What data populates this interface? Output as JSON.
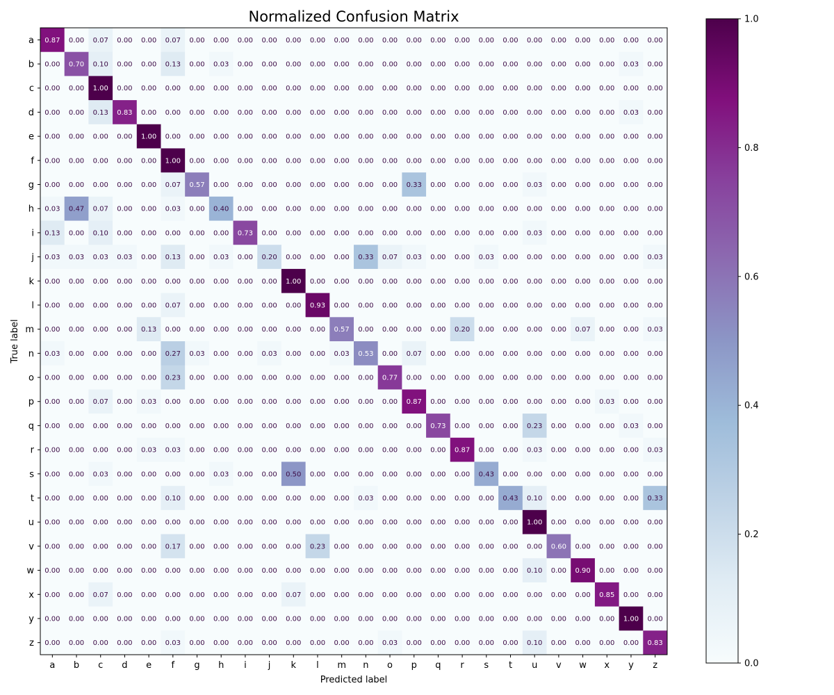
{
  "chart_data": {
    "type": "heatmap",
    "title": "Normalized Confusion Matrix",
    "xlabel": "Predicted label",
    "ylabel": "True label",
    "x_categories": [
      "a",
      "b",
      "c",
      "d",
      "e",
      "f",
      "g",
      "h",
      "i",
      "j",
      "k",
      "l",
      "m",
      "n",
      "o",
      "p",
      "q",
      "r",
      "s",
      "t",
      "u",
      "v",
      "w",
      "x",
      "y",
      "z"
    ],
    "y_categories": [
      "a",
      "b",
      "c",
      "d",
      "e",
      "f",
      "g",
      "h",
      "i",
      "j",
      "k",
      "l",
      "m",
      "n",
      "o",
      "p",
      "q",
      "r",
      "s",
      "t",
      "u",
      "v",
      "w",
      "x",
      "y",
      "z"
    ],
    "value_range": [
      0,
      1
    ],
    "colormap": "BuPu",
    "colorbar_ticks": [
      "0.0",
      "0.2",
      "0.4",
      "0.6",
      "0.8",
      "1.0"
    ],
    "colorbar_tick_values": [
      0,
      0.2,
      0.4,
      0.6,
      0.8,
      1.0
    ],
    "values": [
      [
        0.87,
        0.0,
        0.07,
        0.0,
        0.0,
        0.07,
        0.0,
        0.0,
        0.0,
        0.0,
        0.0,
        0.0,
        0.0,
        0.0,
        0.0,
        0.0,
        0.0,
        0.0,
        0.0,
        0.0,
        0.0,
        0.0,
        0.0,
        0.0,
        0.0,
        0.0
      ],
      [
        0.0,
        0.7,
        0.1,
        0.0,
        0.0,
        0.13,
        0.0,
        0.03,
        0.0,
        0.0,
        0.0,
        0.0,
        0.0,
        0.0,
        0.0,
        0.0,
        0.0,
        0.0,
        0.0,
        0.0,
        0.0,
        0.0,
        0.0,
        0.0,
        0.03,
        0.0
      ],
      [
        0.0,
        0.0,
        1.0,
        0.0,
        0.0,
        0.0,
        0.0,
        0.0,
        0.0,
        0.0,
        0.0,
        0.0,
        0.0,
        0.0,
        0.0,
        0.0,
        0.0,
        0.0,
        0.0,
        0.0,
        0.0,
        0.0,
        0.0,
        0.0,
        0.0,
        0.0
      ],
      [
        0.0,
        0.0,
        0.13,
        0.83,
        0.0,
        0.0,
        0.0,
        0.0,
        0.0,
        0.0,
        0.0,
        0.0,
        0.0,
        0.0,
        0.0,
        0.0,
        0.0,
        0.0,
        0.0,
        0.0,
        0.0,
        0.0,
        0.0,
        0.0,
        0.03,
        0.0
      ],
      [
        0.0,
        0.0,
        0.0,
        0.0,
        1.0,
        0.0,
        0.0,
        0.0,
        0.0,
        0.0,
        0.0,
        0.0,
        0.0,
        0.0,
        0.0,
        0.0,
        0.0,
        0.0,
        0.0,
        0.0,
        0.0,
        0.0,
        0.0,
        0.0,
        0.0,
        0.0
      ],
      [
        0.0,
        0.0,
        0.0,
        0.0,
        0.0,
        1.0,
        0.0,
        0.0,
        0.0,
        0.0,
        0.0,
        0.0,
        0.0,
        0.0,
        0.0,
        0.0,
        0.0,
        0.0,
        0.0,
        0.0,
        0.0,
        0.0,
        0.0,
        0.0,
        0.0,
        0.0
      ],
      [
        0.0,
        0.0,
        0.0,
        0.0,
        0.0,
        0.07,
        0.57,
        0.0,
        0.0,
        0.0,
        0.0,
        0.0,
        0.0,
        0.0,
        0.0,
        0.33,
        0.0,
        0.0,
        0.0,
        0.0,
        0.03,
        0.0,
        0.0,
        0.0,
        0.0,
        0.0
      ],
      [
        0.03,
        0.47,
        0.07,
        0.0,
        0.0,
        0.03,
        0.0,
        0.4,
        0.0,
        0.0,
        0.0,
        0.0,
        0.0,
        0.0,
        0.0,
        0.0,
        0.0,
        0.0,
        0.0,
        0.0,
        0.0,
        0.0,
        0.0,
        0.0,
        0.0,
        0.0
      ],
      [
        0.13,
        0.0,
        0.1,
        0.0,
        0.0,
        0.0,
        0.0,
        0.0,
        0.73,
        0.0,
        0.0,
        0.0,
        0.0,
        0.0,
        0.0,
        0.0,
        0.0,
        0.0,
        0.0,
        0.0,
        0.03,
        0.0,
        0.0,
        0.0,
        0.0,
        0.0
      ],
      [
        0.03,
        0.03,
        0.03,
        0.03,
        0.0,
        0.13,
        0.0,
        0.03,
        0.0,
        0.2,
        0.0,
        0.0,
        0.0,
        0.33,
        0.07,
        0.03,
        0.0,
        0.0,
        0.03,
        0.0,
        0.0,
        0.0,
        0.0,
        0.0,
        0.0,
        0.03
      ],
      [
        0.0,
        0.0,
        0.0,
        0.0,
        0.0,
        0.0,
        0.0,
        0.0,
        0.0,
        0.0,
        1.0,
        0.0,
        0.0,
        0.0,
        0.0,
        0.0,
        0.0,
        0.0,
        0.0,
        0.0,
        0.0,
        0.0,
        0.0,
        0.0,
        0.0,
        0.0
      ],
      [
        0.0,
        0.0,
        0.0,
        0.0,
        0.0,
        0.07,
        0.0,
        0.0,
        0.0,
        0.0,
        0.0,
        0.93,
        0.0,
        0.0,
        0.0,
        0.0,
        0.0,
        0.0,
        0.0,
        0.0,
        0.0,
        0.0,
        0.0,
        0.0,
        0.0,
        0.0
      ],
      [
        0.0,
        0.0,
        0.0,
        0.0,
        0.13,
        0.0,
        0.0,
        0.0,
        0.0,
        0.0,
        0.0,
        0.0,
        0.57,
        0.0,
        0.0,
        0.0,
        0.0,
        0.2,
        0.0,
        0.0,
        0.0,
        0.0,
        0.07,
        0.0,
        0.0,
        0.03
      ],
      [
        0.03,
        0.0,
        0.0,
        0.0,
        0.0,
        0.27,
        0.03,
        0.0,
        0.0,
        0.03,
        0.0,
        0.0,
        0.03,
        0.53,
        0.0,
        0.07,
        0.0,
        0.0,
        0.0,
        0.0,
        0.0,
        0.0,
        0.0,
        0.0,
        0.0,
        0.0
      ],
      [
        0.0,
        0.0,
        0.0,
        0.0,
        0.0,
        0.23,
        0.0,
        0.0,
        0.0,
        0.0,
        0.0,
        0.0,
        0.0,
        0.0,
        0.77,
        0.0,
        0.0,
        0.0,
        0.0,
        0.0,
        0.0,
        0.0,
        0.0,
        0.0,
        0.0,
        0.0
      ],
      [
        0.0,
        0.0,
        0.07,
        0.0,
        0.03,
        0.0,
        0.0,
        0.0,
        0.0,
        0.0,
        0.0,
        0.0,
        0.0,
        0.0,
        0.0,
        0.87,
        0.0,
        0.0,
        0.0,
        0.0,
        0.0,
        0.0,
        0.0,
        0.03,
        0.0,
        0.0
      ],
      [
        0.0,
        0.0,
        0.0,
        0.0,
        0.0,
        0.0,
        0.0,
        0.0,
        0.0,
        0.0,
        0.0,
        0.0,
        0.0,
        0.0,
        0.0,
        0.0,
        0.73,
        0.0,
        0.0,
        0.0,
        0.23,
        0.0,
        0.0,
        0.0,
        0.03,
        0.0
      ],
      [
        0.0,
        0.0,
        0.0,
        0.0,
        0.03,
        0.03,
        0.0,
        0.0,
        0.0,
        0.0,
        0.0,
        0.0,
        0.0,
        0.0,
        0.0,
        0.0,
        0.0,
        0.87,
        0.0,
        0.0,
        0.03,
        0.0,
        0.0,
        0.0,
        0.0,
        0.03
      ],
      [
        0.0,
        0.0,
        0.03,
        0.0,
        0.0,
        0.0,
        0.0,
        0.03,
        0.0,
        0.0,
        0.5,
        0.0,
        0.0,
        0.0,
        0.0,
        0.0,
        0.0,
        0.0,
        0.43,
        0.0,
        0.0,
        0.0,
        0.0,
        0.0,
        0.0,
        0.0
      ],
      [
        0.0,
        0.0,
        0.0,
        0.0,
        0.0,
        0.1,
        0.0,
        0.0,
        0.0,
        0.0,
        0.0,
        0.0,
        0.0,
        0.03,
        0.0,
        0.0,
        0.0,
        0.0,
        0.0,
        0.43,
        0.1,
        0.0,
        0.0,
        0.0,
        0.0,
        0.33
      ],
      [
        0.0,
        0.0,
        0.0,
        0.0,
        0.0,
        0.0,
        0.0,
        0.0,
        0.0,
        0.0,
        0.0,
        0.0,
        0.0,
        0.0,
        0.0,
        0.0,
        0.0,
        0.0,
        0.0,
        0.0,
        1.0,
        0.0,
        0.0,
        0.0,
        0.0,
        0.0
      ],
      [
        0.0,
        0.0,
        0.0,
        0.0,
        0.0,
        0.17,
        0.0,
        0.0,
        0.0,
        0.0,
        0.0,
        0.23,
        0.0,
        0.0,
        0.0,
        0.0,
        0.0,
        0.0,
        0.0,
        0.0,
        0.0,
        0.6,
        0.0,
        0.0,
        0.0,
        0.0
      ],
      [
        0.0,
        0.0,
        0.0,
        0.0,
        0.0,
        0.0,
        0.0,
        0.0,
        0.0,
        0.0,
        0.0,
        0.0,
        0.0,
        0.0,
        0.0,
        0.0,
        0.0,
        0.0,
        0.0,
        0.0,
        0.1,
        0.0,
        0.9,
        0.0,
        0.0,
        0.0
      ],
      [
        0.0,
        0.0,
        0.07,
        0.0,
        0.0,
        0.0,
        0.0,
        0.0,
        0.0,
        0.0,
        0.07,
        0.0,
        0.0,
        0.0,
        0.0,
        0.0,
        0.0,
        0.0,
        0.0,
        0.0,
        0.0,
        0.0,
        0.0,
        0.85,
        0.0,
        0.0
      ],
      [
        0.0,
        0.0,
        0.0,
        0.0,
        0.0,
        0.0,
        0.0,
        0.0,
        0.0,
        0.0,
        0.0,
        0.0,
        0.0,
        0.0,
        0.0,
        0.0,
        0.0,
        0.0,
        0.0,
        0.0,
        0.0,
        0.0,
        0.0,
        0.0,
        1.0,
        0.0
      ],
      [
        0.0,
        0.0,
        0.0,
        0.0,
        0.0,
        0.03,
        0.0,
        0.0,
        0.0,
        0.0,
        0.0,
        0.0,
        0.0,
        0.0,
        0.03,
        0.0,
        0.0,
        0.0,
        0.0,
        0.0,
        0.1,
        0.0,
        0.0,
        0.0,
        0.0,
        0.83
      ]
    ]
  }
}
